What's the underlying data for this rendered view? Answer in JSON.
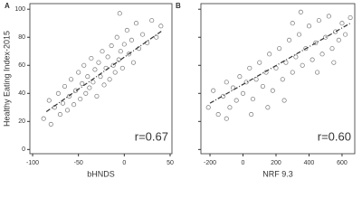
{
  "chart_data": [
    {
      "type": "scatter",
      "panel_label": "A",
      "x_label": "bHNDS",
      "y_label": "Healthy Eating Index-2015",
      "annotation": "r=0.67",
      "xlim": [
        -103,
        52
      ],
      "ylim": [
        -3,
        104
      ],
      "xticks": [
        -100,
        -50,
        0,
        50
      ],
      "yticks": [
        0,
        20,
        40,
        60,
        80,
        100
      ],
      "show_ytick_labels": true,
      "series": [
        {
          "color": "#777777",
          "x": [
            -88,
            -82,
            -80,
            -76,
            -72,
            -70,
            -67,
            -65,
            -62,
            -60,
            -58,
            -55,
            -53,
            -50,
            -48,
            -46,
            -44,
            -42,
            -40,
            -38,
            -36,
            -34,
            -32,
            -30,
            -28,
            -26,
            -24,
            -22,
            -20,
            -18,
            -16,
            -14,
            -12,
            -10,
            -8,
            -6,
            -4,
            -2,
            0,
            3,
            5,
            8,
            10,
            13,
            16,
            20,
            25,
            30,
            35,
            40,
            -5
          ],
          "values": [
            22,
            35,
            18,
            30,
            40,
            25,
            33,
            45,
            28,
            38,
            50,
            32,
            42,
            55,
            36,
            47,
            60,
            40,
            52,
            44,
            65,
            48,
            57,
            38,
            62,
            52,
            70,
            46,
            58,
            66,
            50,
            74,
            60,
            55,
            80,
            64,
            70,
            58,
            75,
            85,
            68,
            78,
            62,
            90,
            72,
            82,
            76,
            92,
            80,
            88,
            97
          ]
        }
      ],
      "fit": {
        "color": "#333333",
        "x": [
          -85,
          42
        ],
        "y": [
          27,
          85
        ]
      }
    },
    {
      "type": "scatter",
      "panel_label": "B",
      "x_label": "NRF 9.3",
      "annotation": "r=0.60",
      "xlim": [
        -255,
        677
      ],
      "ylim": [
        -3,
        104
      ],
      "xticks": [
        -200,
        0,
        200,
        400,
        600
      ],
      "yticks": [
        0,
        20,
        40,
        60,
        80,
        100
      ],
      "show_ytick_labels": false,
      "series": [
        {
          "color": "#777777",
          "x": [
            -210,
            -180,
            -150,
            -120,
            -100,
            -80,
            -60,
            -40,
            -20,
            0,
            20,
            40,
            60,
            80,
            100,
            120,
            140,
            160,
            180,
            200,
            220,
            240,
            260,
            280,
            300,
            320,
            340,
            360,
            380,
            400,
            420,
            440,
            460,
            480,
            500,
            520,
            540,
            560,
            580,
            600,
            620,
            650,
            -100,
            250,
            450,
            350,
            150,
            550,
            50,
            300
          ],
          "values": [
            30,
            42,
            25,
            38,
            48,
            30,
            44,
            35,
            52,
            40,
            48,
            58,
            36,
            50,
            62,
            45,
            55,
            68,
            42,
            58,
            72,
            50,
            62,
            78,
            55,
            66,
            82,
            60,
            72,
            88,
            64,
            76,
            92,
            68,
            80,
            95,
            72,
            84,
            78,
            90,
            82,
            94,
            22,
            35,
            55,
            98,
            30,
            62,
            25,
            90
          ]
        }
      ],
      "fit": {
        "color": "#333333",
        "x": [
          -200,
          650
        ],
        "y": [
          33,
          90
        ]
      }
    }
  ]
}
